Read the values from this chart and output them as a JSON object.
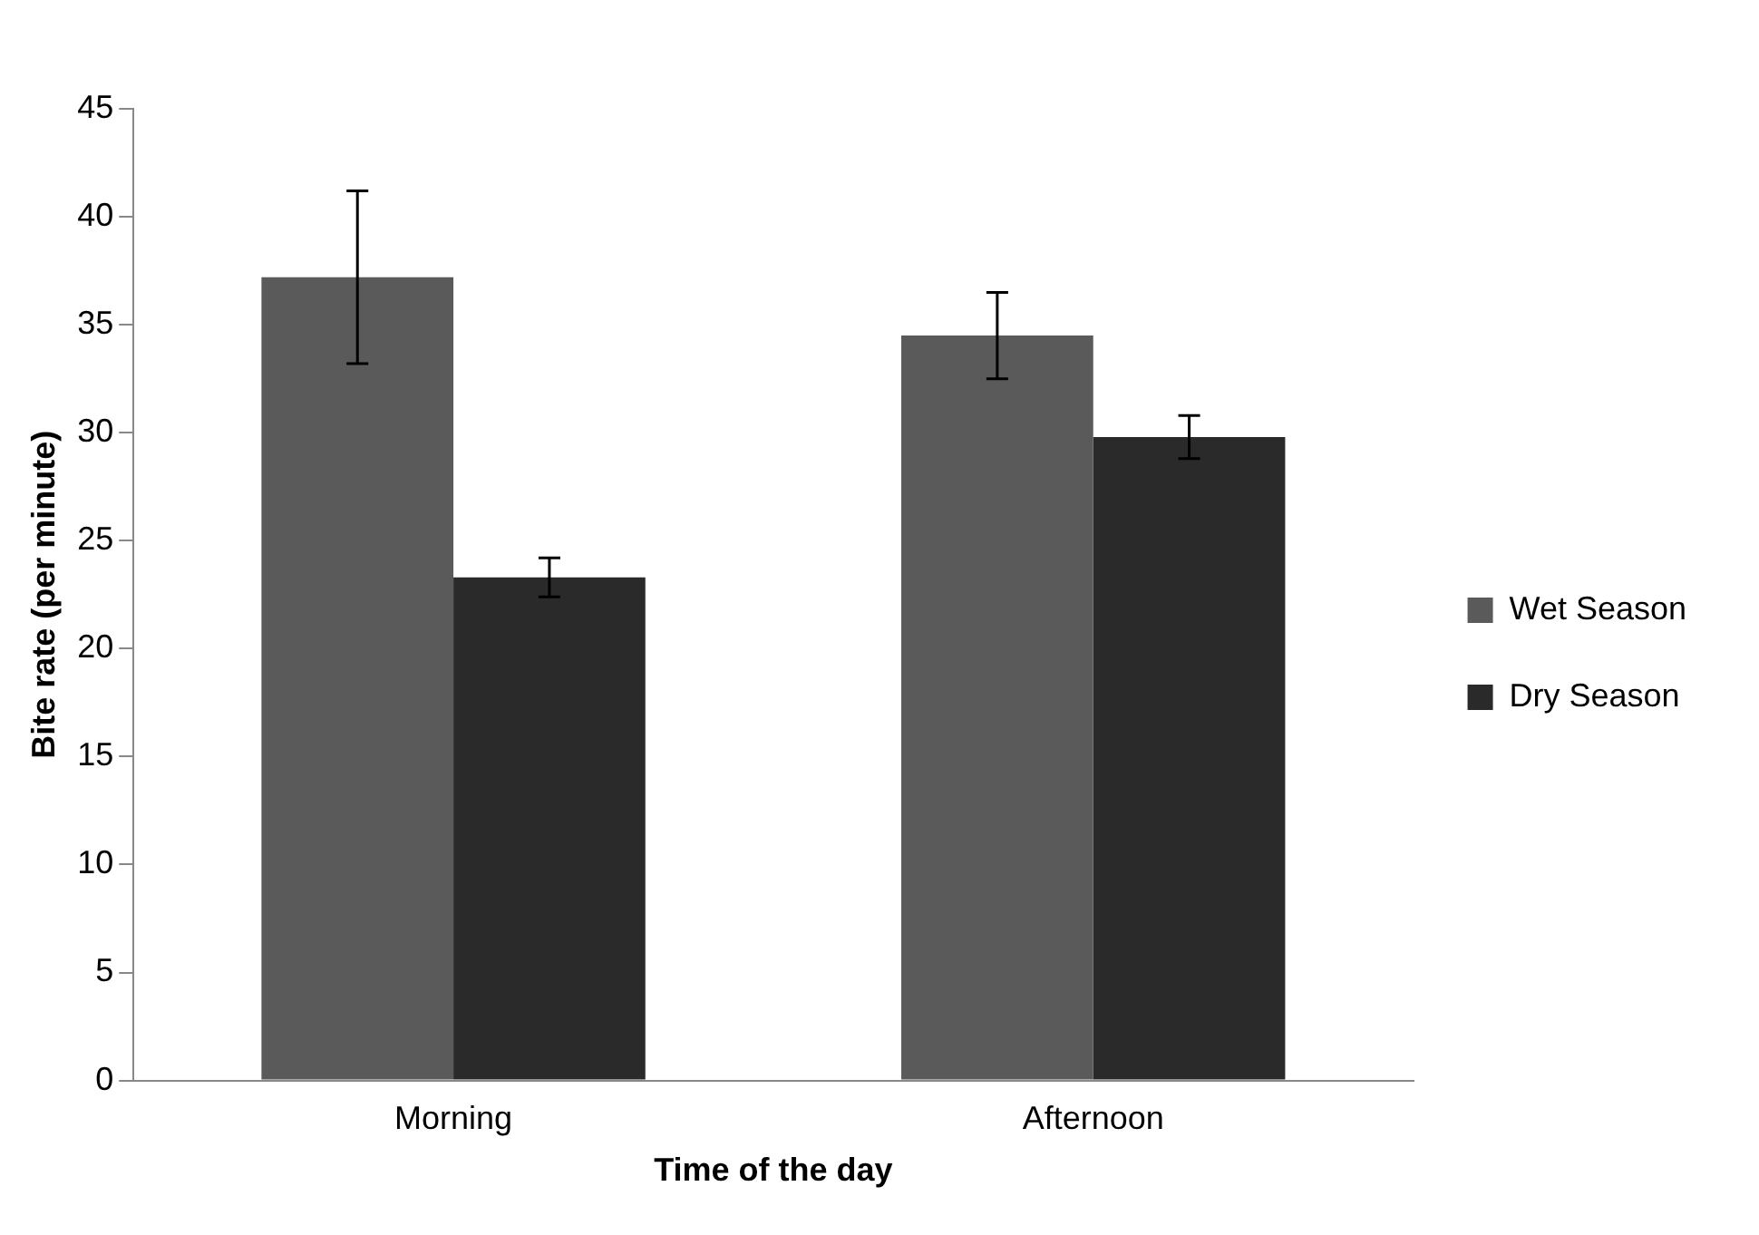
{
  "chart_data": {
    "type": "bar",
    "xlabel": "Time of the day",
    "ylabel": "Bite rate (per minute)",
    "categories": [
      "Morning",
      "Afternoon"
    ],
    "series": [
      {
        "name": "Wet Season",
        "color": "#5a5a5a",
        "values": [
          37.2,
          34.5
        ],
        "errors": [
          4.0,
          2.0
        ]
      },
      {
        "name": "Dry Season",
        "color": "#2a2a2a",
        "values": [
          23.3,
          29.8
        ],
        "errors": [
          0.9,
          1.0
        ]
      }
    ],
    "ylim": [
      0,
      45
    ],
    "yticks": [
      0,
      5,
      10,
      15,
      20,
      25,
      30,
      35,
      40,
      45
    ],
    "grid": false,
    "legend": "right"
  }
}
